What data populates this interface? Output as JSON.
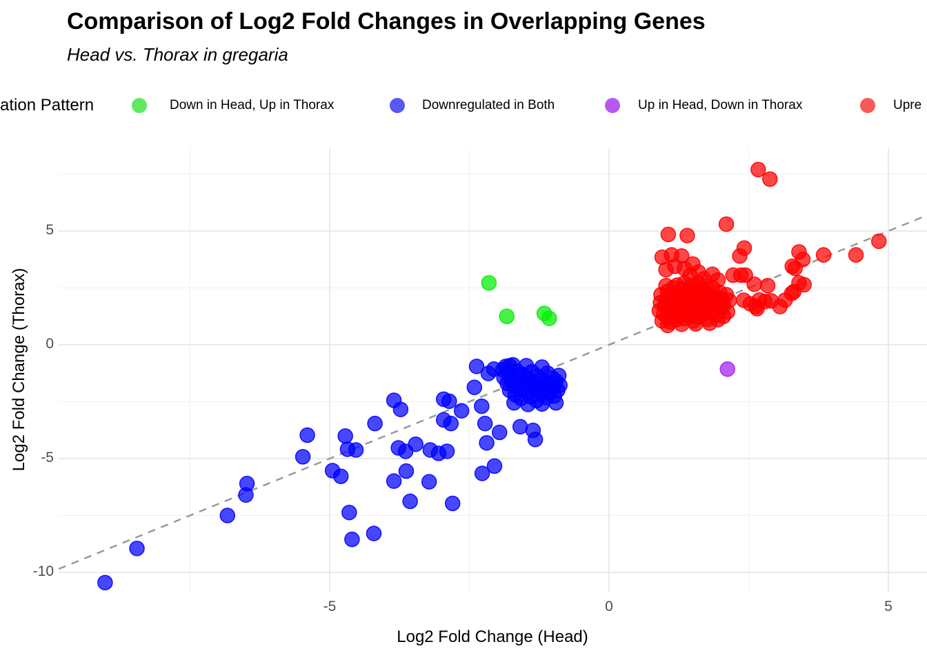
{
  "header": {
    "title": "Comparison of Log2 Fold Changes in Overlapping Genes",
    "subtitle": "Head vs. Thorax in gregaria"
  },
  "legend": {
    "title": "ation Pattern",
    "items": [
      {
        "label": "Down in Head, Up in Thorax",
        "color": "#44e544"
      },
      {
        "label": "Downregulated in Both",
        "color": "#3b3bf0"
      },
      {
        "label": "Up in Head, Down in Thorax",
        "color": "#ab3bef"
      },
      {
        "label": "Upre",
        "color": "#f83b3b"
      }
    ]
  },
  "chart_data": {
    "type": "scatter",
    "title": "Comparison of Log2 Fold Changes in Overlapping Genes",
    "subtitle": "Head vs. Thorax in gregaria",
    "xlabel": "Log2 Fold Change (Head)",
    "ylabel": "Log2 Fold Change (Thorax)",
    "xlim": [
      -9.85,
      5.7
    ],
    "ylim": [
      -11.1,
      8.65
    ],
    "xticks": [
      -5,
      0,
      5
    ],
    "yticks": [
      -10,
      -5,
      0,
      5
    ],
    "xminor": [
      -7.5,
      -2.5,
      2.5
    ],
    "yminor": [
      -7.5,
      -2.5,
      2.5,
      7.5
    ],
    "grid": true,
    "legend_position": "top",
    "reference_line": {
      "style": "dashed",
      "equation": "y = x",
      "color": "#999999"
    },
    "series": [
      {
        "name": "Downregulated in Both",
        "color": "#0000ff",
        "points": [
          [
            -9.02,
            -10.45
          ],
          [
            -8.45,
            -8.95
          ],
          [
            -6.83,
            -7.5
          ],
          [
            -6.48,
            -6.1
          ],
          [
            -6.5,
            -6.6
          ],
          [
            -5.48,
            -4.92
          ],
          [
            -5.4,
            -3.97
          ],
          [
            -4.95,
            -5.53
          ],
          [
            -4.8,
            -5.78
          ],
          [
            -4.72,
            -4.01
          ],
          [
            -4.68,
            -4.59
          ],
          [
            -4.65,
            -7.37
          ],
          [
            -4.6,
            -8.55
          ],
          [
            -4.53,
            -4.62
          ],
          [
            -4.21,
            -8.29
          ],
          [
            -4.19,
            -3.46
          ],
          [
            -3.85,
            -5.99
          ],
          [
            -3.63,
            -5.55
          ],
          [
            -3.56,
            -6.88
          ],
          [
            -3.22,
            -6.02
          ],
          [
            -2.8,
            -6.97
          ],
          [
            -2.27,
            -5.65
          ],
          [
            -2.05,
            -5.33
          ],
          [
            -3.85,
            -2.44
          ],
          [
            -3.73,
            -2.84
          ],
          [
            -3.77,
            -4.53
          ],
          [
            -3.64,
            -4.68
          ],
          [
            -3.46,
            -4.37
          ],
          [
            -3.2,
            -4.62
          ],
          [
            -3.05,
            -4.77
          ],
          [
            -2.9,
            -4.68
          ],
          [
            -2.96,
            -2.39
          ],
          [
            -2.86,
            -2.48
          ],
          [
            -2.96,
            -3.3
          ],
          [
            -2.83,
            -3.46
          ],
          [
            -2.64,
            -2.9
          ],
          [
            -2.41,
            -1.87
          ],
          [
            -2.37,
            -0.95
          ],
          [
            -2.28,
            -2.7
          ],
          [
            -2.22,
            -3.46
          ],
          [
            -2.16,
            -1.26
          ],
          [
            -2.19,
            -4.31
          ],
          [
            -1.96,
            -3.85
          ],
          [
            -1.59,
            -3.6
          ],
          [
            -1.36,
            -3.76
          ],
          [
            -1.32,
            -4.16
          ],
          [
            -2.06,
            -1.07
          ],
          [
            -1.9,
            -1.1
          ],
          [
            -1.88,
            -1.45
          ],
          [
            -1.85,
            -0.95
          ],
          [
            -1.82,
            -1.7
          ],
          [
            -1.8,
            -1.25
          ],
          [
            -1.78,
            -2.0
          ],
          [
            -1.75,
            -1.52
          ],
          [
            -1.72,
            -0.88
          ],
          [
            -1.7,
            -1.8
          ],
          [
            -1.68,
            -2.2
          ],
          [
            -1.65,
            -1.15
          ],
          [
            -1.62,
            -1.48
          ],
          [
            -1.6,
            -1.95
          ],
          [
            -1.58,
            -2.35
          ],
          [
            -1.55,
            -1.3
          ],
          [
            -1.52,
            -1.68
          ],
          [
            -1.5,
            -2.05
          ],
          [
            -1.48,
            -0.92
          ],
          [
            -1.45,
            -1.5
          ],
          [
            -1.42,
            -1.85
          ],
          [
            -1.4,
            -2.28
          ],
          [
            -1.38,
            -1.18
          ],
          [
            -1.35,
            -1.62
          ],
          [
            -1.32,
            -2.0
          ],
          [
            -1.3,
            -2.45
          ],
          [
            -1.28,
            -1.38
          ],
          [
            -1.25,
            -1.75
          ],
          [
            -1.22,
            -2.15
          ],
          [
            -1.2,
            -0.98
          ],
          [
            -1.18,
            -1.55
          ],
          [
            -1.15,
            -1.92
          ],
          [
            -1.12,
            -2.32
          ],
          [
            -1.1,
            -1.25
          ],
          [
            -1.08,
            -1.7
          ],
          [
            -1.05,
            -2.08
          ],
          [
            -1.02,
            -1.45
          ],
          [
            -1.0,
            -1.88
          ],
          [
            -0.98,
            -2.25
          ],
          [
            -0.95,
            -1.6
          ],
          [
            -0.92,
            -2.0
          ],
          [
            -0.9,
            -1.35
          ],
          [
            -0.88,
            -1.78
          ],
          [
            -0.95,
            -2.55
          ],
          [
            -1.2,
            -2.6
          ],
          [
            -1.45,
            -2.62
          ],
          [
            -1.7,
            -2.55
          ],
          [
            -1.78,
            -0.92
          ]
        ]
      },
      {
        "name": "Down in Head, Up in Thorax",
        "color": "#00ee00",
        "points": [
          [
            -2.15,
            2.72
          ],
          [
            -1.83,
            1.25
          ],
          [
            -1.16,
            1.38
          ],
          [
            -1.07,
            1.16
          ]
        ]
      },
      {
        "name": "Upre",
        "color": "#ff0000",
        "points": [
          [
            2.67,
            7.7
          ],
          [
            2.88,
            7.28
          ],
          [
            2.1,
            5.3
          ],
          [
            1.06,
            4.85
          ],
          [
            1.4,
            4.8
          ],
          [
            2.42,
            4.25
          ],
          [
            2.34,
            3.9
          ],
          [
            3.4,
            4.08
          ],
          [
            3.47,
            3.75
          ],
          [
            3.28,
            3.45
          ],
          [
            3.84,
            3.95
          ],
          [
            4.42,
            3.95
          ],
          [
            4.83,
            4.55
          ],
          [
            3.33,
            3.36
          ],
          [
            3.4,
            2.72
          ],
          [
            3.49,
            2.64
          ],
          [
            3.27,
            2.26
          ],
          [
            3.31,
            2.34
          ],
          [
            3.15,
            1.96
          ],
          [
            3.06,
            1.68
          ],
          [
            2.9,
            1.93
          ],
          [
            2.84,
            2.6
          ],
          [
            2.79,
            1.9
          ],
          [
            2.69,
            1.97
          ],
          [
            2.65,
            1.59
          ],
          [
            2.63,
            1.68
          ],
          [
            2.6,
            2.66
          ],
          [
            2.53,
            1.8
          ],
          [
            2.44,
            3.06
          ],
          [
            2.41,
            1.96
          ],
          [
            2.36,
            3.06
          ],
          [
            2.22,
            3.06
          ],
          [
            0.95,
            3.85
          ],
          [
            1.12,
            3.95
          ],
          [
            1.3,
            3.9
          ],
          [
            1.02,
            3.3
          ],
          [
            1.18,
            3.45
          ],
          [
            1.35,
            3.35
          ],
          [
            1.5,
            3.55
          ],
          [
            1.6,
            3.2
          ],
          [
            1.45,
            3.05
          ],
          [
            1.7,
            2.9
          ],
          [
            1.85,
            3.1
          ],
          [
            1.95,
            2.85
          ],
          [
            0.92,
            1.85
          ],
          [
            0.9,
            1.5
          ],
          [
            0.93,
            2.2
          ],
          [
            0.95,
            1.05
          ],
          [
            0.98,
            1.35
          ],
          [
            1.0,
            1.7
          ],
          [
            1.02,
            2.0
          ],
          [
            1.02,
            2.6
          ],
          [
            1.05,
            1.2
          ],
          [
            1.05,
            2.35
          ],
          [
            1.05,
            0.85
          ],
          [
            1.08,
            1.55
          ],
          [
            1.1,
            1.85
          ],
          [
            1.1,
            1.0
          ],
          [
            1.12,
            2.15
          ],
          [
            1.15,
            1.4
          ],
          [
            1.15,
            2.5
          ],
          [
            1.18,
            1.68
          ],
          [
            1.2,
            1.1
          ],
          [
            1.2,
            1.95
          ],
          [
            1.22,
            2.3
          ],
          [
            1.22,
            2.62
          ],
          [
            1.25,
            1.52
          ],
          [
            1.25,
            2.05
          ],
          [
            1.28,
            1.3
          ],
          [
            1.28,
            1.78
          ],
          [
            1.3,
            2.45
          ],
          [
            1.3,
            0.9
          ],
          [
            1.32,
            1.6
          ],
          [
            1.32,
            2.12
          ],
          [
            1.35,
            1.15
          ],
          [
            1.35,
            1.88
          ],
          [
            1.35,
            2.72
          ],
          [
            1.38,
            2.28
          ],
          [
            1.4,
            1.45
          ],
          [
            1.4,
            2.0
          ],
          [
            1.42,
            1.7
          ],
          [
            1.45,
            1.25
          ],
          [
            1.45,
            2.4
          ],
          [
            1.48,
            1.92
          ],
          [
            1.48,
            2.6
          ],
          [
            1.5,
            1.55
          ],
          [
            1.5,
            2.15
          ],
          [
            1.52,
            1.05
          ],
          [
            1.55,
            1.75
          ],
          [
            1.55,
            2.32
          ],
          [
            1.55,
            0.92
          ],
          [
            1.58,
            1.48
          ],
          [
            1.6,
            2.02
          ],
          [
            1.6,
            1.22
          ],
          [
            1.6,
            2.7
          ],
          [
            1.62,
            2.48
          ],
          [
            1.65,
            1.62
          ],
          [
            1.65,
            2.18
          ],
          [
            1.68,
            1.35
          ],
          [
            1.7,
            1.9
          ],
          [
            1.7,
            2.35
          ],
          [
            1.72,
            1.58
          ],
          [
            1.72,
            2.58
          ],
          [
            1.75,
            2.08
          ],
          [
            1.75,
            1.12
          ],
          [
            1.78,
            1.8
          ],
          [
            1.8,
            2.25
          ],
          [
            1.8,
            0.95
          ],
          [
            1.82,
            1.42
          ],
          [
            1.85,
            1.95
          ],
          [
            1.85,
            2.52
          ],
          [
            1.88,
            1.65
          ],
          [
            1.9,
            2.1
          ],
          [
            1.92,
            1.3
          ],
          [
            1.95,
            1.85
          ],
          [
            1.95,
            1.1
          ],
          [
            1.98,
            2.3
          ],
          [
            2.0,
            1.55
          ],
          [
            2.02,
            2.0
          ],
          [
            2.05,
            1.75
          ],
          [
            2.05,
            1.25
          ],
          [
            2.1,
            2.2
          ],
          [
            2.12,
            1.45
          ],
          [
            2.15,
            1.95
          ]
        ]
      },
      {
        "name": "Up in Head, Down in Thorax",
        "color": "#a020f0",
        "points": [
          [
            2.12,
            -1.07
          ]
        ]
      }
    ]
  }
}
